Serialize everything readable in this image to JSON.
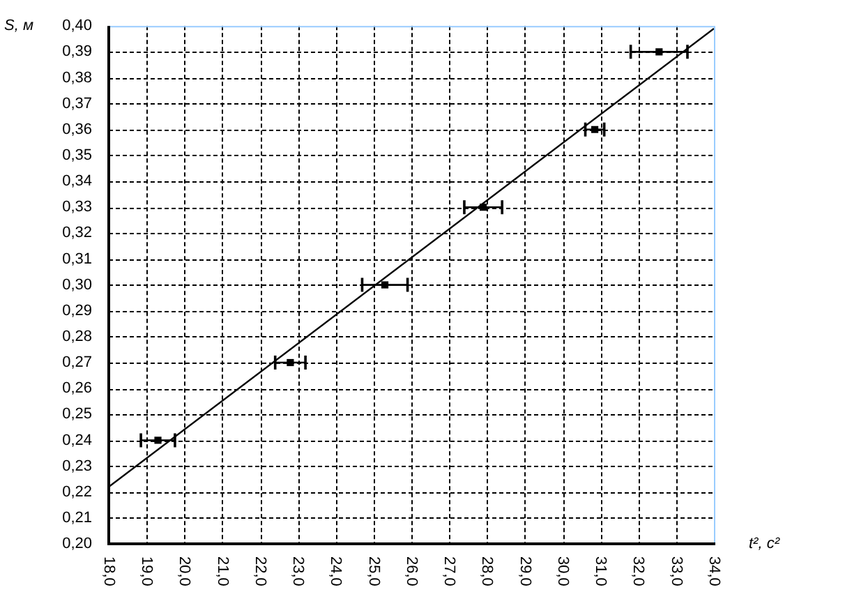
{
  "chart_data": {
    "type": "scatter",
    "xlabel": "t², c²",
    "ylabel": "S, м",
    "xlim": [
      18,
      34
    ],
    "ylim": [
      0.2,
      0.4
    ],
    "xticks": [
      {
        "value": 18,
        "label": "18,0"
      },
      {
        "value": 19,
        "label": "19,0"
      },
      {
        "value": 20,
        "label": "20,0"
      },
      {
        "value": 21,
        "label": "21,0"
      },
      {
        "value": 22,
        "label": "22,0"
      },
      {
        "value": 23,
        "label": "23,0"
      },
      {
        "value": 24,
        "label": "24,0"
      },
      {
        "value": 25,
        "label": "25,0"
      },
      {
        "value": 26,
        "label": "26,0"
      },
      {
        "value": 27,
        "label": "27,0"
      },
      {
        "value": 28,
        "label": "28,0"
      },
      {
        "value": 29,
        "label": "29,0"
      },
      {
        "value": 30,
        "label": "30,0"
      },
      {
        "value": 31,
        "label": "31,0"
      },
      {
        "value": 32,
        "label": "32,0"
      },
      {
        "value": 33,
        "label": "33,0"
      },
      {
        "value": 34,
        "label": "34,0"
      }
    ],
    "yticks": [
      {
        "value": 0.2,
        "label": "0,20"
      },
      {
        "value": 0.21,
        "label": "0,21"
      },
      {
        "value": 0.22,
        "label": "0,22"
      },
      {
        "value": 0.23,
        "label": "0,23"
      },
      {
        "value": 0.24,
        "label": "0,24"
      },
      {
        "value": 0.25,
        "label": "0,25"
      },
      {
        "value": 0.26,
        "label": "0,26"
      },
      {
        "value": 0.27,
        "label": "0,27"
      },
      {
        "value": 0.28,
        "label": "0,28"
      },
      {
        "value": 0.29,
        "label": "0,29"
      },
      {
        "value": 0.3,
        "label": "0,30"
      },
      {
        "value": 0.31,
        "label": "0,31"
      },
      {
        "value": 0.32,
        "label": "0,32"
      },
      {
        "value": 0.33,
        "label": "0,33"
      },
      {
        "value": 0.34,
        "label": "0,34"
      },
      {
        "value": 0.35,
        "label": "0,35"
      },
      {
        "value": 0.36,
        "label": "0,36"
      },
      {
        "value": 0.37,
        "label": "0,37"
      },
      {
        "value": 0.38,
        "label": "0,38"
      },
      {
        "value": 0.39,
        "label": "0,39"
      },
      {
        "value": 0.4,
        "label": "0,40"
      }
    ],
    "grid": true,
    "marker": "square",
    "series": [
      {
        "color": "#000000",
        "x": [
          19.3,
          22.8,
          25.3,
          27.9,
          30.85,
          32.55
        ],
        "values": [
          0.24,
          0.27,
          0.3,
          0.33,
          0.36,
          0.39
        ],
        "xerrors": [
          0.45,
          0.4,
          0.6,
          0.5,
          0.25,
          0.75
        ]
      },
      {
        "type": "line",
        "color": "#000000",
        "marker": "none",
        "x": [
          18,
          34
        ],
        "values": [
          0.222,
          0.399
        ]
      }
    ]
  }
}
